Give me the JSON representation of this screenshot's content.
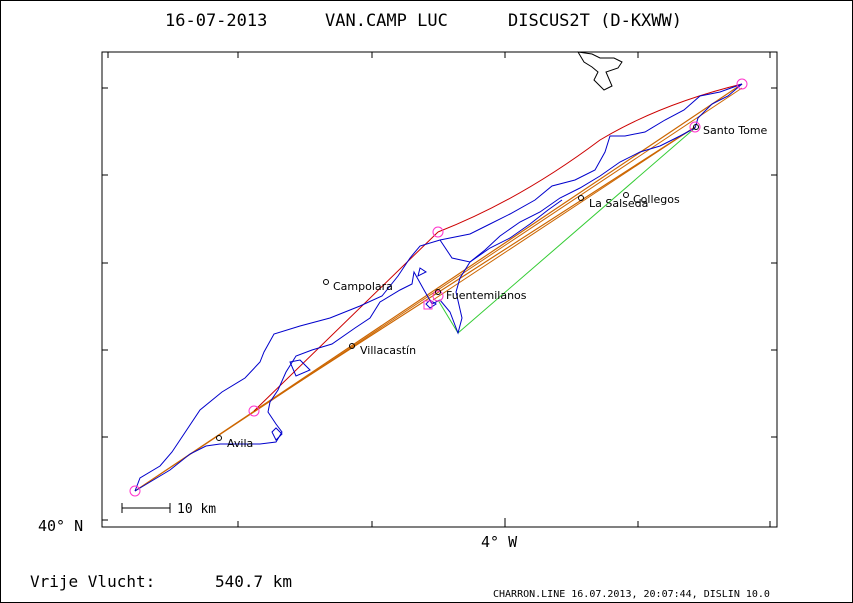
{
  "header": {
    "date": "16-07-2013",
    "pilot": "VAN.CAMP LUC",
    "glider": "DISCUS2T (D-KXWW)"
  },
  "axes": {
    "lat_label": "40° N",
    "lon_label": "4° W"
  },
  "scale_bar": {
    "label": "10 km"
  },
  "summary": {
    "label": "Vrije Vlucht:",
    "distance": "540.7 km"
  },
  "footer": {
    "text": "CHARRON.LINE 16.07.2013, 20:07:44, DISLIN 10.0"
  },
  "places": [
    {
      "name": "Santo Tome"
    },
    {
      "name": "Collegos"
    },
    {
      "name": "La Salseda"
    },
    {
      "name": "Campolara"
    },
    {
      "name": "Fuentemilanos"
    },
    {
      "name": "Villacastín"
    },
    {
      "name": "Avila"
    }
  ],
  "colors": {
    "track": "#0000cc",
    "task_line": "#cc6600",
    "task_line_alt": "#cc0000",
    "closing_line": "#33cc33",
    "turnpoint": "#ff33cc",
    "frame": "#000000"
  }
}
